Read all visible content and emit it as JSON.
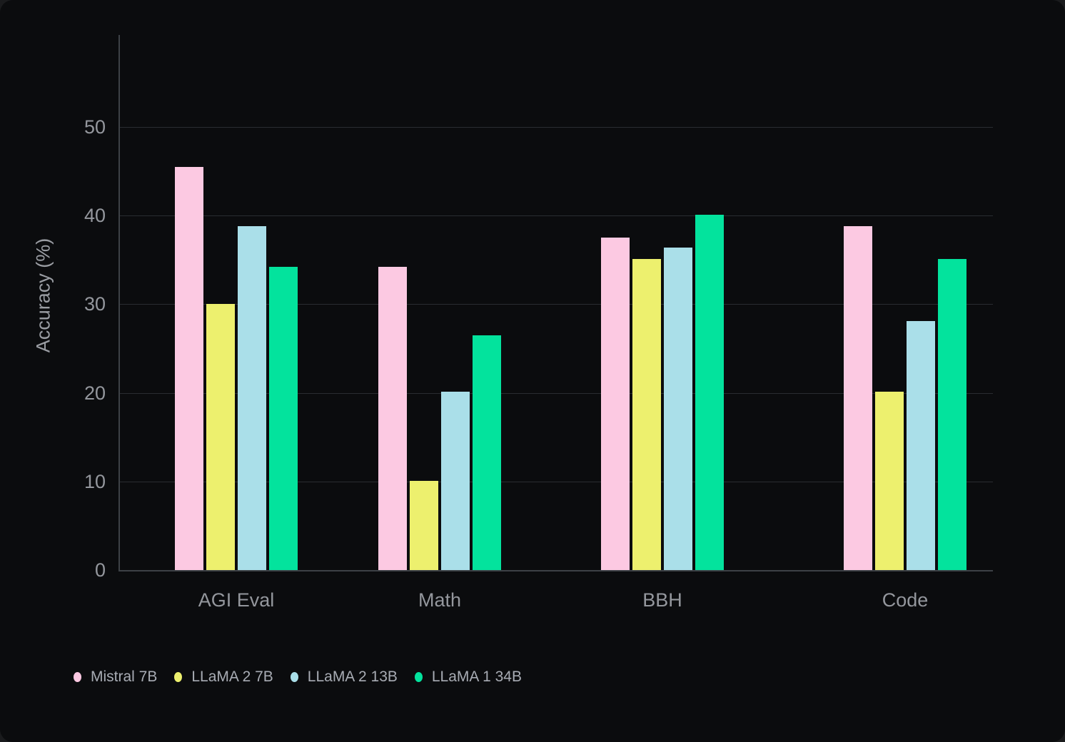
{
  "chart_data": {
    "type": "bar",
    "title": "",
    "xlabel": "",
    "ylabel": "Accuracy (%)",
    "categories": [
      "AGI Eval",
      "Math",
      "BBH",
      "Code"
    ],
    "series": [
      {
        "name": "Mistral 7B",
        "color": "#fcc9e2",
        "values": [
          45.5,
          34.2,
          37.5,
          38.8
        ]
      },
      {
        "name": "LLaMA 2 7B",
        "color": "#edf06e",
        "values": [
          30.0,
          10.1,
          35.1,
          20.1
        ]
      },
      {
        "name": "LLaMA 2 13B",
        "color": "#aadfe9",
        "values": [
          38.8,
          20.1,
          36.4,
          28.1
        ]
      },
      {
        "name": "LLaMA 1 34B",
        "color": "#03e39d",
        "values": [
          34.2,
          26.5,
          40.1,
          35.1
        ]
      }
    ],
    "yticks": [
      0,
      10,
      20,
      30,
      40,
      50
    ],
    "ylim": [
      0,
      60.4
    ],
    "grid": "horizontal",
    "legend_position": "bottom-left",
    "theme": {
      "background": "#0b0c0e",
      "page_background": "#1a1b1d",
      "gridline_color": "#2a2d31",
      "axis_color": "#3d4146",
      "tick_text_color": "#94979d",
      "legend_text_color": "#a8acb4"
    }
  }
}
